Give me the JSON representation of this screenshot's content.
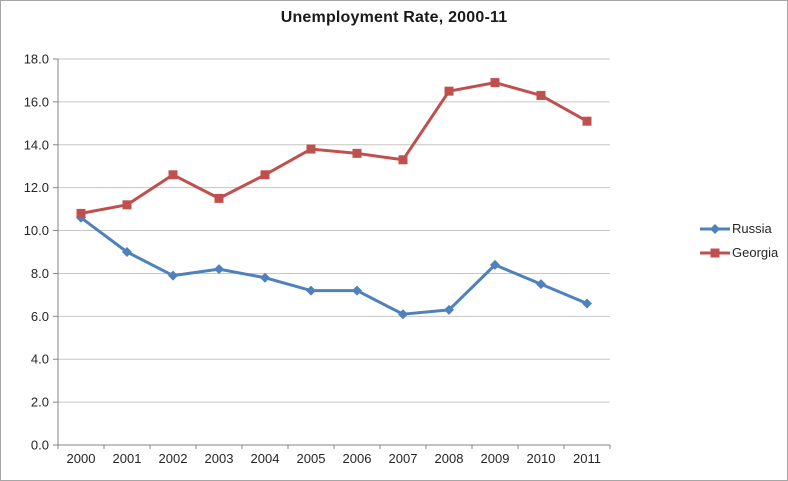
{
  "frame": {
    "background": "#FFFFFF",
    "border_color": "#A6A6A6"
  },
  "chart_data": {
    "type": "line",
    "title": "Unemployment Rate, 2000-11",
    "categories": [
      "2000",
      "2001",
      "2002",
      "2003",
      "2004",
      "2005",
      "2006",
      "2007",
      "2008",
      "2009",
      "2010",
      "2011"
    ],
    "series": [
      {
        "name": "Russia",
        "color": "#4F81BD",
        "marker": "diamond",
        "values": [
          10.6,
          9.0,
          7.9,
          8.2,
          7.8,
          7.2,
          7.2,
          6.1,
          6.3,
          8.4,
          7.5,
          6.6
        ]
      },
      {
        "name": "Georgia",
        "color": "#C0504D",
        "marker": "square",
        "values": [
          10.8,
          11.2,
          12.6,
          11.5,
          12.6,
          13.8,
          13.6,
          13.3,
          16.5,
          16.9,
          16.3,
          15.1
        ]
      }
    ],
    "xlabel": "",
    "ylabel": "",
    "ylim": [
      0,
      18
    ],
    "ytick_step": 2,
    "ytick_labels": [
      "0.0",
      "2.0",
      "4.0",
      "6.0",
      "8.0",
      "10.0",
      "12.0",
      "14.0",
      "16.0",
      "18.0"
    ],
    "grid": "horizontal",
    "legend_position": "right",
    "styles": {
      "gridline_color": "#C6C6C6",
      "axis_color": "#868686",
      "tick_label_color": "#262626",
      "title_color": "#1A1A1A",
      "line_width": 3
    }
  }
}
